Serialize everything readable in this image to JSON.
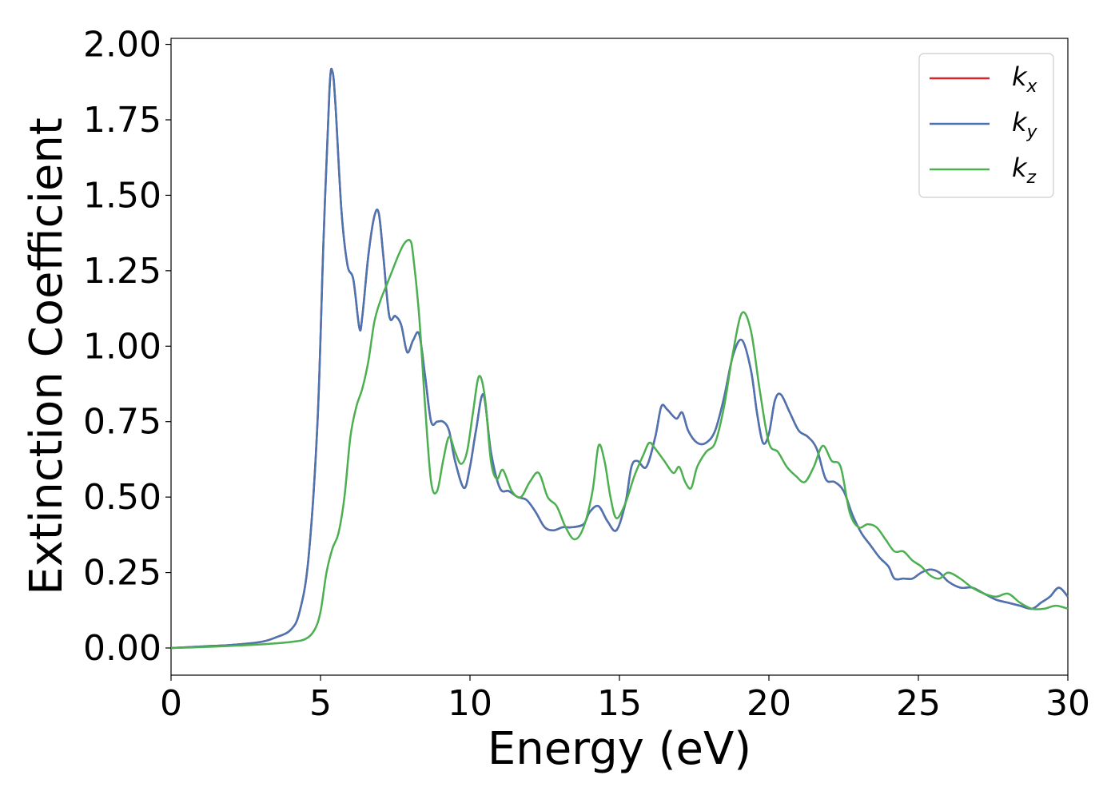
{
  "chart_data": {
    "type": "line",
    "title": "",
    "xlabel": "Energy (eV)",
    "ylabel": "Extinction Coefficient",
    "xlim": [
      0,
      30
    ],
    "ylim": [
      -0.09,
      2.02
    ],
    "xticks": [
      0,
      5,
      10,
      15,
      20,
      25,
      30
    ],
    "xtick_labels": [
      "0",
      "5",
      "10",
      "15",
      "20",
      "25",
      "30"
    ],
    "yticks": [
      0,
      0.25,
      0.5,
      0.75,
      1.0,
      1.25,
      1.5,
      1.75,
      2.0
    ],
    "ytick_labels": [
      "0.00",
      "0.25",
      "0.50",
      "0.75",
      "1.00",
      "1.25",
      "1.50",
      "1.75",
      "2.00"
    ],
    "grid": false,
    "legend_position": "top-right",
    "series": [
      {
        "name": "k_x",
        "label_main": "k",
        "label_sub": "x",
        "color": "#d62728",
        "x": [
          0,
          1,
          2,
          3,
          3.5,
          4,
          4.3,
          4.6,
          4.9,
          5.1,
          5.3,
          5.4,
          5.5,
          5.7,
          5.9,
          6.1,
          6.3,
          6.4,
          6.6,
          6.8,
          6.95,
          7.1,
          7.3,
          7.5,
          7.7,
          7.9,
          8.1,
          8.3,
          8.5,
          8.7,
          8.9,
          9.1,
          9.3,
          9.5,
          9.8,
          10.0,
          10.2,
          10.45,
          10.7,
          11.0,
          11.3,
          11.6,
          11.9,
          12.2,
          12.5,
          12.8,
          13.1,
          13.4,
          13.8,
          14.0,
          14.3,
          14.6,
          14.9,
          15.2,
          15.4,
          15.6,
          15.9,
          16.2,
          16.4,
          16.6,
          16.9,
          17.1,
          17.3,
          17.6,
          17.9,
          18.2,
          18.5,
          18.8,
          19.1,
          19.4,
          19.6,
          19.8,
          20.0,
          20.2,
          20.4,
          20.7,
          21.0,
          21.3,
          21.6,
          21.9,
          22.2,
          22.5,
          22.8,
          23.1,
          23.4,
          23.7,
          24.0,
          24.2,
          24.5,
          24.8,
          25.1,
          25.4,
          25.7,
          26.0,
          26.4,
          26.8,
          27.2,
          27.6,
          28.0,
          28.4,
          28.8,
          29.1,
          29.4,
          29.7,
          30.0
        ],
        "y": [
          0.0,
          0.005,
          0.01,
          0.02,
          0.035,
          0.06,
          0.12,
          0.3,
          0.75,
          1.35,
          1.85,
          1.91,
          1.8,
          1.45,
          1.27,
          1.22,
          1.06,
          1.1,
          1.3,
          1.43,
          1.44,
          1.3,
          1.1,
          1.1,
          1.07,
          0.98,
          1.02,
          1.04,
          0.9,
          0.75,
          0.75,
          0.75,
          0.72,
          0.62,
          0.53,
          0.6,
          0.72,
          0.84,
          0.65,
          0.53,
          0.52,
          0.5,
          0.49,
          0.45,
          0.4,
          0.39,
          0.4,
          0.4,
          0.41,
          0.45,
          0.47,
          0.42,
          0.39,
          0.48,
          0.6,
          0.62,
          0.6,
          0.7,
          0.8,
          0.79,
          0.76,
          0.78,
          0.72,
          0.68,
          0.68,
          0.72,
          0.83,
          0.97,
          1.02,
          0.92,
          0.78,
          0.68,
          0.71,
          0.82,
          0.84,
          0.78,
          0.72,
          0.7,
          0.66,
          0.56,
          0.55,
          0.52,
          0.44,
          0.38,
          0.34,
          0.3,
          0.27,
          0.23,
          0.23,
          0.23,
          0.25,
          0.26,
          0.25,
          0.22,
          0.2,
          0.2,
          0.18,
          0.16,
          0.15,
          0.14,
          0.13,
          0.15,
          0.17,
          0.2,
          0.17
        ]
      },
      {
        "name": "k_y",
        "label_main": "k",
        "label_sub": "y",
        "color": "#4a74b2",
        "x": [
          0,
          1,
          2,
          3,
          3.5,
          4,
          4.3,
          4.6,
          4.9,
          5.1,
          5.3,
          5.4,
          5.5,
          5.7,
          5.9,
          6.1,
          6.3,
          6.4,
          6.6,
          6.8,
          6.95,
          7.1,
          7.3,
          7.5,
          7.7,
          7.9,
          8.1,
          8.3,
          8.5,
          8.7,
          8.9,
          9.1,
          9.3,
          9.5,
          9.8,
          10.0,
          10.2,
          10.45,
          10.7,
          11.0,
          11.3,
          11.6,
          11.9,
          12.2,
          12.5,
          12.8,
          13.1,
          13.4,
          13.8,
          14.0,
          14.3,
          14.6,
          14.9,
          15.2,
          15.4,
          15.6,
          15.9,
          16.2,
          16.4,
          16.6,
          16.9,
          17.1,
          17.3,
          17.6,
          17.9,
          18.2,
          18.5,
          18.8,
          19.1,
          19.4,
          19.6,
          19.8,
          20.0,
          20.2,
          20.4,
          20.7,
          21.0,
          21.3,
          21.6,
          21.9,
          22.2,
          22.5,
          22.8,
          23.1,
          23.4,
          23.7,
          24.0,
          24.2,
          24.5,
          24.8,
          25.1,
          25.4,
          25.7,
          26.0,
          26.4,
          26.8,
          27.2,
          27.6,
          28.0,
          28.4,
          28.8,
          29.1,
          29.4,
          29.7,
          30.0
        ],
        "y": [
          0.0,
          0.005,
          0.01,
          0.02,
          0.035,
          0.06,
          0.12,
          0.3,
          0.75,
          1.35,
          1.85,
          1.91,
          1.8,
          1.45,
          1.27,
          1.22,
          1.06,
          1.1,
          1.3,
          1.43,
          1.44,
          1.3,
          1.1,
          1.1,
          1.07,
          0.98,
          1.02,
          1.04,
          0.9,
          0.75,
          0.75,
          0.75,
          0.72,
          0.62,
          0.53,
          0.6,
          0.72,
          0.84,
          0.65,
          0.53,
          0.52,
          0.5,
          0.49,
          0.45,
          0.4,
          0.39,
          0.4,
          0.4,
          0.41,
          0.45,
          0.47,
          0.42,
          0.39,
          0.48,
          0.6,
          0.62,
          0.6,
          0.7,
          0.8,
          0.79,
          0.76,
          0.78,
          0.72,
          0.68,
          0.68,
          0.72,
          0.83,
          0.97,
          1.02,
          0.92,
          0.78,
          0.68,
          0.71,
          0.82,
          0.84,
          0.78,
          0.72,
          0.7,
          0.66,
          0.56,
          0.55,
          0.52,
          0.44,
          0.38,
          0.34,
          0.3,
          0.27,
          0.23,
          0.23,
          0.23,
          0.25,
          0.26,
          0.25,
          0.22,
          0.2,
          0.2,
          0.18,
          0.16,
          0.15,
          0.14,
          0.13,
          0.15,
          0.17,
          0.2,
          0.17
        ]
      },
      {
        "name": "k_z",
        "label_main": "k",
        "label_sub": "z",
        "color": "#4caf50",
        "x": [
          0,
          1,
          2,
          3,
          4,
          4.5,
          4.8,
          5.0,
          5.2,
          5.4,
          5.6,
          5.8,
          6.0,
          6.2,
          6.4,
          6.6,
          6.8,
          7.0,
          7.2,
          7.4,
          7.6,
          7.8,
          8.0,
          8.1,
          8.3,
          8.5,
          8.7,
          8.9,
          9.1,
          9.3,
          9.5,
          9.7,
          9.9,
          10.1,
          10.3,
          10.5,
          10.7,
          10.9,
          11.1,
          11.4,
          11.7,
          12.0,
          12.3,
          12.6,
          12.9,
          13.2,
          13.5,
          13.8,
          14.1,
          14.3,
          14.5,
          14.7,
          14.9,
          15.2,
          15.5,
          15.8,
          16.0,
          16.2,
          16.5,
          16.8,
          17.0,
          17.2,
          17.4,
          17.6,
          17.9,
          18.2,
          18.5,
          18.8,
          19.1,
          19.4,
          19.7,
          20.0,
          20.3,
          20.6,
          20.9,
          21.2,
          21.5,
          21.8,
          22.1,
          22.4,
          22.7,
          23.0,
          23.3,
          23.6,
          23.9,
          24.2,
          24.5,
          24.8,
          25.1,
          25.4,
          25.7,
          26.0,
          26.4,
          26.8,
          27.2,
          27.6,
          28.0,
          28.4,
          28.8,
          29.2,
          29.6,
          30.0
        ],
        "y": [
          0.0,
          0.003,
          0.007,
          0.012,
          0.02,
          0.03,
          0.06,
          0.12,
          0.25,
          0.33,
          0.38,
          0.5,
          0.7,
          0.8,
          0.86,
          0.95,
          1.08,
          1.15,
          1.2,
          1.25,
          1.3,
          1.34,
          1.35,
          1.3,
          1.1,
          0.8,
          0.55,
          0.52,
          0.62,
          0.7,
          0.65,
          0.61,
          0.65,
          0.78,
          0.9,
          0.83,
          0.62,
          0.56,
          0.59,
          0.52,
          0.5,
          0.55,
          0.58,
          0.5,
          0.47,
          0.4,
          0.36,
          0.4,
          0.52,
          0.67,
          0.62,
          0.5,
          0.43,
          0.48,
          0.57,
          0.64,
          0.68,
          0.66,
          0.62,
          0.58,
          0.6,
          0.55,
          0.53,
          0.6,
          0.65,
          0.68,
          0.8,
          0.98,
          1.11,
          1.05,
          0.85,
          0.68,
          0.65,
          0.6,
          0.57,
          0.55,
          0.6,
          0.67,
          0.62,
          0.6,
          0.45,
          0.4,
          0.41,
          0.4,
          0.36,
          0.32,
          0.32,
          0.29,
          0.27,
          0.24,
          0.23,
          0.25,
          0.23,
          0.2,
          0.18,
          0.17,
          0.18,
          0.15,
          0.13,
          0.13,
          0.14,
          0.13
        ]
      }
    ]
  }
}
